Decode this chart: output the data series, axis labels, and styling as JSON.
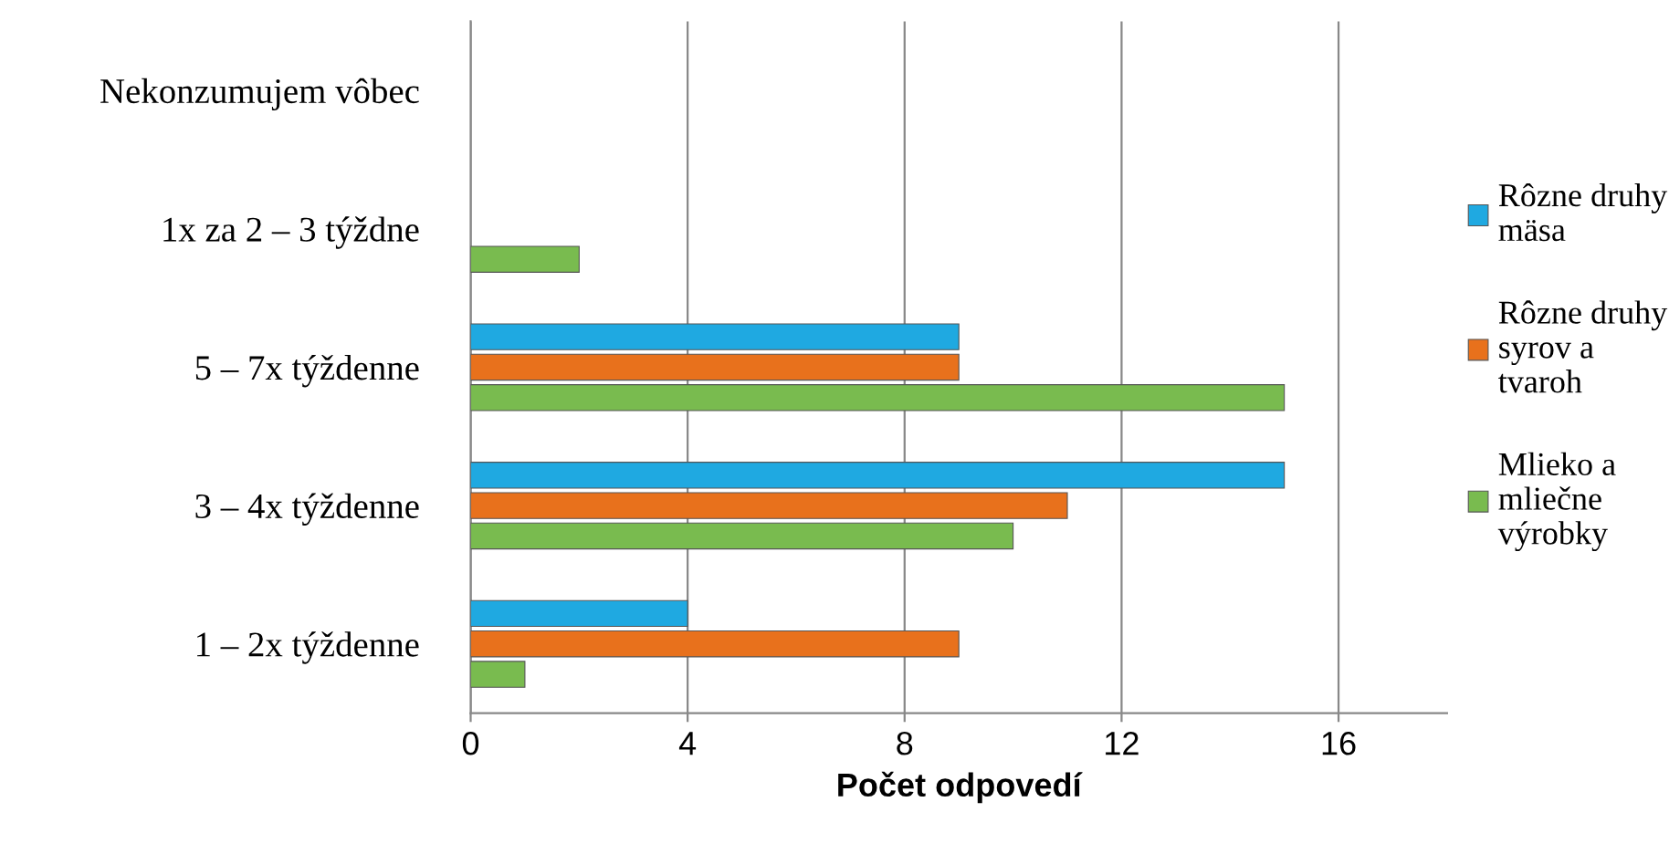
{
  "chart_data": {
    "type": "bar",
    "orientation": "horizontal",
    "xlabel": "Počet odpovedí",
    "categories": [
      "Nekonzumujem vôbec",
      "1x za 2 – 3 týždne",
      "5 – 7x týždenne",
      "3 – 4x týždenne",
      "1 – 2x týždenne"
    ],
    "series": [
      {
        "name": "Rôzne druhy mäsa",
        "color": "#1fa9e1",
        "values": [
          null,
          null,
          9,
          15,
          4
        ]
      },
      {
        "name": "Rôzne druhy syrov a tvaroh",
        "color": "#e8711c",
        "values": [
          null,
          null,
          9,
          11,
          9
        ]
      },
      {
        "name": "Mlieko a mliečne výrobky",
        "color": "#79bb4f",
        "values": [
          null,
          2,
          15,
          10,
          1
        ]
      }
    ],
    "xlim": [
      0,
      18
    ],
    "xticks": [
      0,
      4,
      8,
      12,
      16
    ],
    "grid": "x",
    "legend": "right"
  }
}
